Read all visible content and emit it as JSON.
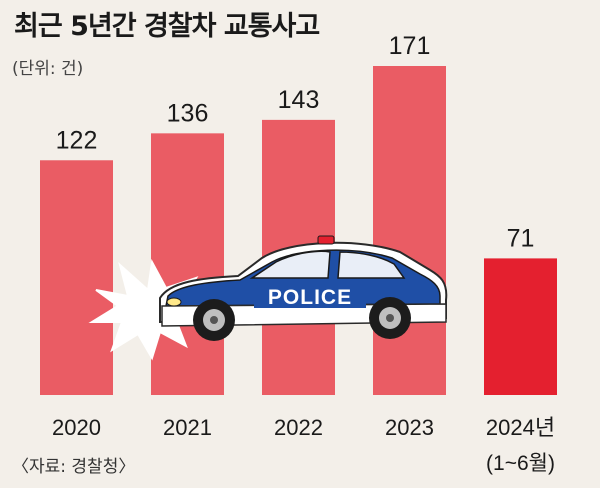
{
  "chart_data": {
    "type": "bar",
    "title": "최근 5년간 경찰차 교통사고",
    "unit_label": "(단위: 건)",
    "source": "〈자료: 경찰청〉",
    "categories": [
      "2020",
      "2021",
      "2022",
      "2023",
      "2024년"
    ],
    "category_sublabels": [
      "",
      "",
      "",
      "",
      "(1~6월)"
    ],
    "values": [
      122,
      136,
      143,
      171,
      71
    ],
    "value_labels": [
      "122",
      "136",
      "143",
      "171",
      "71"
    ],
    "ylim": [
      0,
      171
    ],
    "grid": false,
    "colors": {
      "bar": "#ea5c64",
      "bar_highlight": "#e4202f"
    },
    "highlight_index": 4,
    "illustration": {
      "label": "POLICE",
      "icon": "police-car-crash-icon"
    }
  }
}
